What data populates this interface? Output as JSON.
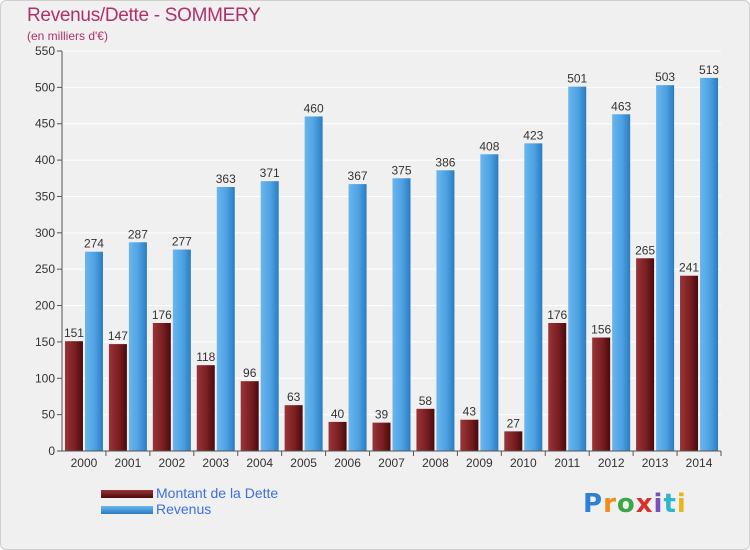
{
  "title": "Revenus/Dette - SOMMERY",
  "subtitle": "(en milliers d'€)",
  "logo": {
    "text": "Proxiti",
    "colors": [
      "#2e7fd6",
      "#f08a1c",
      "#3aa845",
      "#d8322f",
      "#7a4fbf",
      "#2fb6c9",
      "#e8b51d"
    ]
  },
  "chart_data": {
    "type": "bar",
    "categories": [
      "2000",
      "2001",
      "2002",
      "2003",
      "2004",
      "2005",
      "2006",
      "2007",
      "2008",
      "2009",
      "2010",
      "2011",
      "2012",
      "2013",
      "2014"
    ],
    "series": [
      {
        "name": "Montant de la Dette",
        "color": "#7a1f22",
        "values": [
          151,
          147,
          176,
          118,
          96,
          63,
          40,
          39,
          58,
          43,
          27,
          176,
          156,
          265,
          241
        ]
      },
      {
        "name": "Revenus",
        "color": "#4da1e2",
        "values": [
          274,
          287,
          277,
          363,
          371,
          460,
          367,
          375,
          386,
          408,
          423,
          501,
          463,
          503,
          513
        ]
      }
    ],
    "ylim": [
      0,
      550
    ],
    "yticks": [
      0,
      50,
      100,
      150,
      200,
      250,
      300,
      350,
      400,
      450,
      500,
      550
    ],
    "grid": true,
    "legend": "bottom-left"
  }
}
